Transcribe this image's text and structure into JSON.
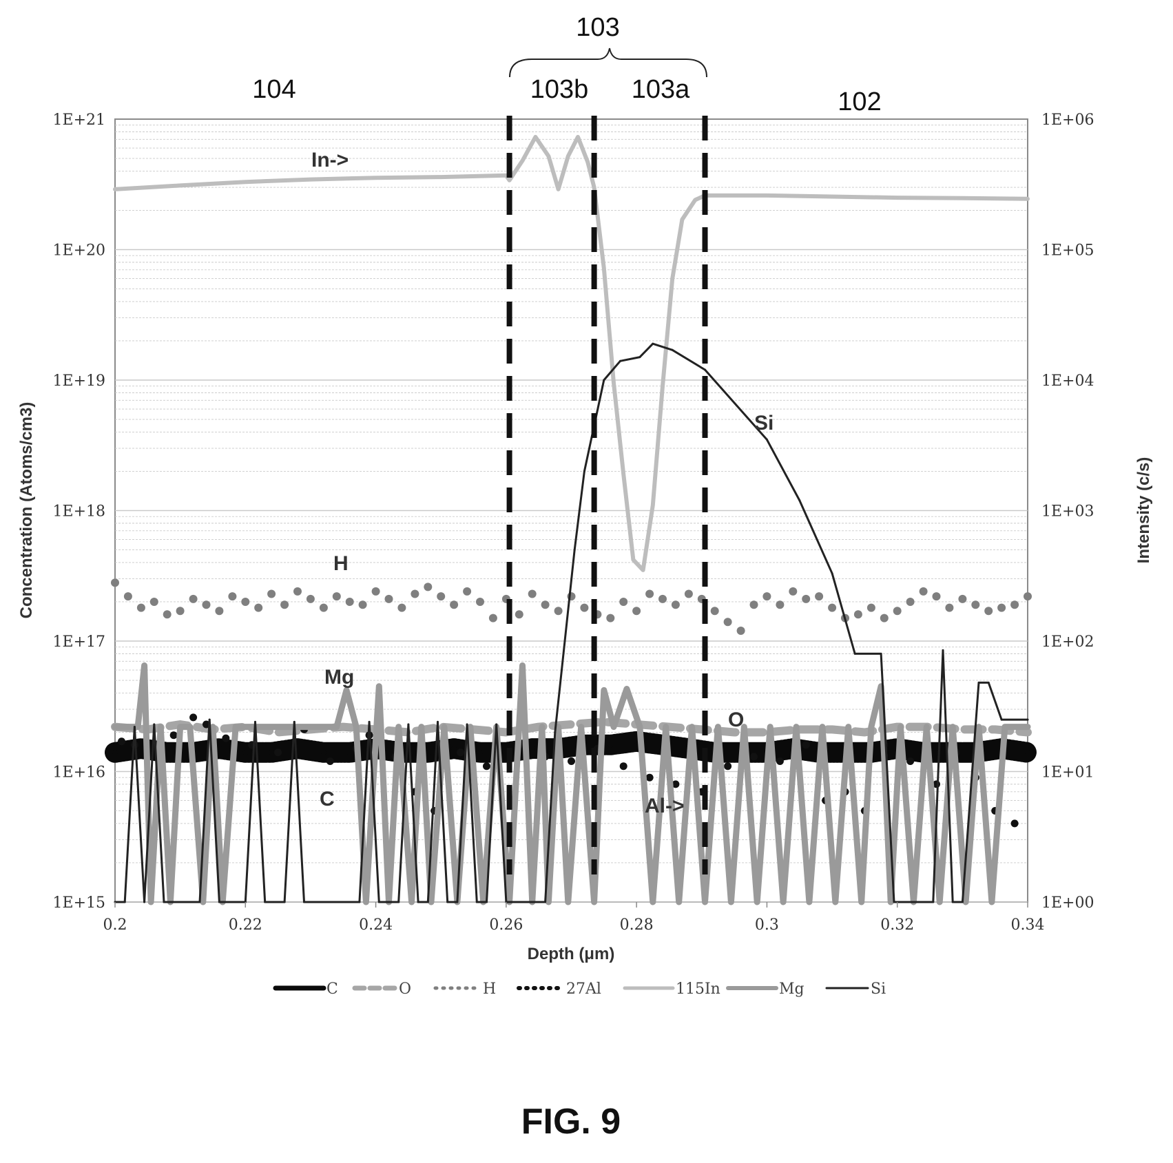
{
  "figure_caption": "FIG. 9",
  "colors": {
    "C": "#0a0a0a",
    "O": "#a6a6a6",
    "H": "#7f7f7f",
    "27Al": "#111111",
    "115In": "#bdbdbd",
    "Mg": "#9a9a9a",
    "Si": "#222222",
    "grid": "#c9c9c9",
    "divider": "#111111"
  },
  "regions": {
    "r104": "104",
    "r103": "103",
    "r103b": "103b",
    "r103a": "103a",
    "r102": "102"
  },
  "annotations": {
    "in": "In->",
    "h": "H",
    "mg": "Mg",
    "c": "C",
    "al": "Al->",
    "o": "O",
    "si": "Si"
  },
  "chart_data": {
    "type": "line",
    "xlabel": "Depth (μm)",
    "ylabel": "Concentration (Atoms/cm3)",
    "y2label": "Intensity (c/s)",
    "xlim": [
      0.2,
      0.34
    ],
    "ylim": [
      1000000000000000.0,
      1e+21
    ],
    "y2lim": [
      1,
      1000000
    ],
    "y_scale": "log",
    "y2_scale": "log",
    "grid": true,
    "legend_position": "bottom",
    "x_ticks": [
      "0.2",
      "0.22",
      "0.24",
      "0.26",
      "0.28",
      "0.3",
      "0.32",
      "0.34"
    ],
    "y_ticks": [
      "1E+15",
      "1E+16",
      "1E+17",
      "1E+18",
      "1E+19",
      "1E+20",
      "1E+21"
    ],
    "y2_ticks": [
      "1E+00",
      "1E+01",
      "1E+02",
      "1E+03",
      "1E+04",
      "1E+05",
      "1E+06"
    ],
    "dividers_x": [
      0.2605,
      0.2735,
      0.2905
    ],
    "series": [
      {
        "name": "C",
        "style": "thick-dots",
        "axis": "left",
        "x": [
          0.2,
          0.204,
          0.208,
          0.212,
          0.216,
          0.22,
          0.224,
          0.228,
          0.232,
          0.236,
          0.24,
          0.244,
          0.248,
          0.252,
          0.256,
          0.26,
          0.264,
          0.268,
          0.272,
          0.276,
          0.28,
          0.284,
          0.288,
          0.292,
          0.296,
          0.3,
          0.304,
          0.308,
          0.312,
          0.316,
          0.32,
          0.324,
          0.328,
          0.332,
          0.336,
          0.34
        ],
        "y": [
          1.4e+16,
          1.5e+16,
          1.4e+16,
          1.4e+16,
          1.5e+16,
          1.4e+16,
          1.4e+16,
          1.5e+16,
          1.4e+16,
          1.4e+16,
          1.5e+16,
          1.4e+16,
          1.4e+16,
          1.5e+16,
          1.4e+16,
          1.4e+16,
          1.5e+16,
          1.5e+16,
          1.6e+16,
          1.6e+16,
          1.7e+16,
          1.6e+16,
          1.5e+16,
          1.4e+16,
          1.4e+16,
          1.4e+16,
          1.5e+16,
          1.4e+16,
          1.4e+16,
          1.4e+16,
          1.5e+16,
          1.4e+16,
          1.4e+16,
          1.4e+16,
          1.5e+16,
          1.4e+16
        ]
      },
      {
        "name": "O",
        "style": "dashed",
        "axis": "left",
        "x": [
          0.2,
          0.205,
          0.21,
          0.215,
          0.22,
          0.225,
          0.23,
          0.235,
          0.24,
          0.245,
          0.25,
          0.255,
          0.26,
          0.265,
          0.27,
          0.275,
          0.28,
          0.285,
          0.29,
          0.295,
          0.3,
          0.305,
          0.31,
          0.315,
          0.32,
          0.325,
          0.33,
          0.335,
          0.34
        ],
        "y": [
          2.2e+16,
          2.1e+16,
          2.3e+16,
          2.1e+16,
          2.2e+16,
          2e+16,
          2.1e+16,
          2.2e+16,
          2.1e+16,
          2e+16,
          2.2e+16,
          2.1e+16,
          2e+16,
          2.2e+16,
          2.3e+16,
          2.4e+16,
          2.3e+16,
          2.2e+16,
          2.1e+16,
          2e+16,
          2e+16,
          2.1e+16,
          2.1e+16,
          2e+16,
          2.2e+16,
          2.2e+16,
          2.1e+16,
          2.1e+16,
          2e+16
        ]
      },
      {
        "name": "H",
        "style": "dots",
        "axis": "left",
        "x": [
          0.2,
          0.202,
          0.204,
          0.206,
          0.208,
          0.21,
          0.212,
          0.214,
          0.216,
          0.218,
          0.22,
          0.222,
          0.224,
          0.226,
          0.228,
          0.23,
          0.232,
          0.234,
          0.236,
          0.238,
          0.24,
          0.242,
          0.244,
          0.246,
          0.248,
          0.25,
          0.252,
          0.254,
          0.256,
          0.258,
          0.26,
          0.262,
          0.264,
          0.266,
          0.268,
          0.27,
          0.272,
          0.274,
          0.276,
          0.278,
          0.28,
          0.282,
          0.284,
          0.286,
          0.288,
          0.29,
          0.292,
          0.294,
          0.296,
          0.298,
          0.3,
          0.302,
          0.304,
          0.306,
          0.308,
          0.31,
          0.312,
          0.314,
          0.316,
          0.318,
          0.32,
          0.322,
          0.324,
          0.326,
          0.328,
          0.33,
          0.332,
          0.334,
          0.336,
          0.338,
          0.34
        ],
        "y": [
          2.8e+17,
          2.2e+17,
          1.8e+17,
          2e+17,
          1.6e+17,
          1.7e+17,
          2.1e+17,
          1.9e+17,
          1.7e+17,
          2.2e+17,
          2e+17,
          1.8e+17,
          2.3e+17,
          1.9e+17,
          2.4e+17,
          2.1e+17,
          1.8e+17,
          2.2e+17,
          2e+17,
          1.9e+17,
          2.4e+17,
          2.1e+17,
          1.8e+17,
          2.3e+17,
          2.6e+17,
          2.2e+17,
          1.9e+17,
          2.4e+17,
          2e+17,
          1.5e+17,
          2.1e+17,
          1.6e+17,
          2.3e+17,
          1.9e+17,
          1.7e+17,
          2.2e+17,
          1.8e+17,
          1.6e+17,
          1.5e+17,
          2e+17,
          1.7e+17,
          2.3e+17,
          2.1e+17,
          1.9e+17,
          2.3e+17,
          2.1e+17,
          1.7e+17,
          1.4e+17,
          1.2e+17,
          1.9e+17,
          2.2e+17,
          1.9e+17,
          2.4e+17,
          2.1e+17,
          2.2e+17,
          1.8e+17,
          1.5e+17,
          1.6e+17,
          1.8e+17,
          1.5e+17,
          1.7e+17,
          2e+17,
          2.4e+17,
          2.2e+17,
          1.8e+17,
          2.1e+17,
          1.9e+17,
          1.7e+17,
          1.8e+17,
          1.9e+17,
          2.2e+17
        ]
      },
      {
        "name": "27Al",
        "style": "dots",
        "axis": "right",
        "x": [
          0.201,
          0.203,
          0.207,
          0.209,
          0.212,
          0.214,
          0.217,
          0.221,
          0.225,
          0.229,
          0.233,
          0.237,
          0.239,
          0.243,
          0.246,
          0.249,
          0.253,
          0.257,
          0.262,
          0.266,
          0.27,
          0.274,
          0.278,
          0.282,
          0.286,
          0.29,
          0.294,
          0.298,
          0.302,
          0.306,
          0.309,
          0.312,
          0.315,
          0.318,
          0.322,
          0.326,
          0.329,
          0.332,
          0.335,
          0.338
        ],
        "y": [
          17,
          16,
          13,
          19,
          26,
          23,
          18,
          16,
          14,
          21,
          12,
          15,
          19,
          13,
          7,
          5,
          14,
          11,
          16,
          13,
          12,
          15,
          11,
          9,
          8,
          7,
          11,
          13,
          12,
          16,
          6,
          7,
          5,
          16,
          12,
          8,
          14,
          9,
          5,
          4
        ]
      },
      {
        "name": "115In",
        "style": "line",
        "axis": "right",
        "x": [
          0.2,
          0.21,
          0.22,
          0.23,
          0.24,
          0.25,
          0.26,
          0.2605,
          0.2625,
          0.2645,
          0.2665,
          0.268,
          0.2695,
          0.271,
          0.2725,
          0.2735,
          0.275,
          0.2765,
          0.278,
          0.2795,
          0.281,
          0.2825,
          0.284,
          0.2855,
          0.287,
          0.289,
          0.2905,
          0.3,
          0.31,
          0.32,
          0.33,
          0.34
        ],
        "y": [
          290000,
          310000,
          330000,
          345000,
          355000,
          360000,
          370000,
          340000,
          480000,
          730000,
          520000,
          290000,
          520000,
          730000,
          470000,
          300000,
          72000,
          9500,
          1900,
          420,
          350,
          1100,
          9000,
          60000,
          170000,
          240000,
          260000,
          260000,
          255000,
          250000,
          248000,
          245000
        ]
      },
      {
        "name": "Mg",
        "style": "spikes",
        "axis": "left",
        "x": [
          0.2,
          0.2035,
          0.2045,
          0.2055,
          0.207,
          0.2085,
          0.21,
          0.2115,
          0.2135,
          0.215,
          0.2165,
          0.2185,
          0.2205,
          0.224,
          0.234,
          0.2355,
          0.237,
          0.2385,
          0.2405,
          0.242,
          0.2435,
          0.2455,
          0.247,
          0.2485,
          0.2505,
          0.2525,
          0.2545,
          0.2565,
          0.2585,
          0.2605,
          0.2625,
          0.264,
          0.2655,
          0.2665,
          0.268,
          0.2695,
          0.2715,
          0.2735,
          0.275,
          0.2765,
          0.2785,
          0.2805,
          0.2825,
          0.2845,
          0.2865,
          0.2885,
          0.2905,
          0.2925,
          0.2945,
          0.2965,
          0.2985,
          0.3005,
          0.3025,
          0.3045,
          0.3065,
          0.3085,
          0.3105,
          0.3125,
          0.3145,
          0.316,
          0.3175,
          0.319,
          0.3205,
          0.3225,
          0.3245,
          0.3265,
          0.3285,
          0.3305,
          0.3325,
          0.3345,
          0.3365,
          0.34
        ],
        "y": [
          2.2e+16,
          2.2e+16,
          6.5e+16,
          1000000000000000.0,
          2.2e+16,
          1000000000000000.0,
          2.2e+16,
          2.2e+16,
          1000000000000000.0,
          2.2e+16,
          1000000000000000.0,
          2.2e+16,
          2.2e+16,
          2.2e+16,
          2.2e+16,
          4.2e+16,
          2.2e+16,
          1000000000000000.0,
          4.5e+16,
          1000000000000000.0,
          2.2e+16,
          1000000000000000.0,
          2.2e+16,
          1000000000000000.0,
          2.2e+16,
          1000000000000000.0,
          2.2e+16,
          1000000000000000.0,
          2.2e+16,
          1000000000000000.0,
          6.5e+16,
          1000000000000000.0,
          2.2e+16,
          1000000000000000.0,
          2.2e+16,
          1000000000000000.0,
          2.2e+16,
          1000000000000000.0,
          4.2e+16,
          2.2e+16,
          4.3e+16,
          2.2e+16,
          1000000000000000.0,
          2.2e+16,
          1000000000000000.0,
          2.2e+16,
          1000000000000000.0,
          2.2e+16,
          1000000000000000.0,
          2.2e+16,
          1000000000000000.0,
          2.2e+16,
          1000000000000000.0,
          2.2e+16,
          1000000000000000.0,
          2.2e+16,
          1000000000000000.0,
          2.2e+16,
          1000000000000000.0,
          2.2e+16,
          4.5e+16,
          1000000000000000.0,
          2.2e+16,
          1000000000000000.0,
          2.2e+16,
          1000000000000000.0,
          2.2e+16,
          1000000000000000.0,
          2.2e+16,
          1000000000000000.0,
          2.2e+16,
          2.2e+16
        ]
      },
      {
        "name": "Si",
        "style": "line",
        "axis": "left",
        "x": [
          0.2,
          0.2015,
          0.203,
          0.2045,
          0.206,
          0.2075,
          0.209,
          0.213,
          0.2145,
          0.216,
          0.22,
          0.2215,
          0.223,
          0.2245,
          0.226,
          0.2275,
          0.229,
          0.236,
          0.2375,
          0.239,
          0.2405,
          0.242,
          0.2435,
          0.245,
          0.2465,
          0.248,
          0.2495,
          0.251,
          0.2525,
          0.254,
          0.2555,
          0.257,
          0.2585,
          0.26,
          0.2615,
          0.263,
          0.2645,
          0.266,
          0.2675,
          0.269,
          0.2705,
          0.272,
          0.275,
          0.2775,
          0.2805,
          0.2825,
          0.2855,
          0.2905,
          0.3,
          0.305,
          0.31,
          0.3135,
          0.3175,
          0.3195,
          0.321,
          0.3225,
          0.324,
          0.3255,
          0.327,
          0.3285,
          0.33,
          0.3325,
          0.334,
          0.336,
          0.34
        ],
        "y": [
          1000000000000000.0,
          1000000000000000.0,
          2.2e+16,
          1000000000000000.0,
          2.3e+16,
          1000000000000000.0,
          1000000000000000.0,
          1000000000000000.0,
          2.5e+16,
          1000000000000000.0,
          1000000000000000.0,
          2.4e+16,
          1000000000000000.0,
          1000000000000000.0,
          1000000000000000.0,
          2.4e+16,
          1000000000000000.0,
          1000000000000000.0,
          1000000000000000.0,
          2.4e+16,
          1000000000000000.0,
          1000000000000000.0,
          1000000000000000.0,
          2.3e+16,
          1000000000000000.0,
          1000000000000000.0,
          2.4e+16,
          1000000000000000.0,
          1000000000000000.0,
          2.3e+16,
          1000000000000000.0,
          1000000000000000.0,
          2.3e+16,
          1000000000000000.0,
          1000000000000000.0,
          1000000000000000.0,
          1000000000000000.0,
          1000000000000000.0,
          2e+16,
          1e+17,
          5e+17,
          2e+18,
          1e+19,
          1.4e+19,
          1.5e+19,
          1.9e+19,
          1.7e+19,
          1.2e+19,
          3.5e+18,
          1.2e+18,
          3.3e+17,
          8e+16,
          8e+16,
          1000000000000000.0,
          1000000000000000.0,
          1000000000000000.0,
          1000000000000000.0,
          1000000000000000.0,
          8.5e+16,
          1000000000000000.0,
          1000000000000000.0,
          4.8e+16,
          4.8e+16,
          2.5e+16,
          2.5e+16
        ]
      }
    ]
  }
}
